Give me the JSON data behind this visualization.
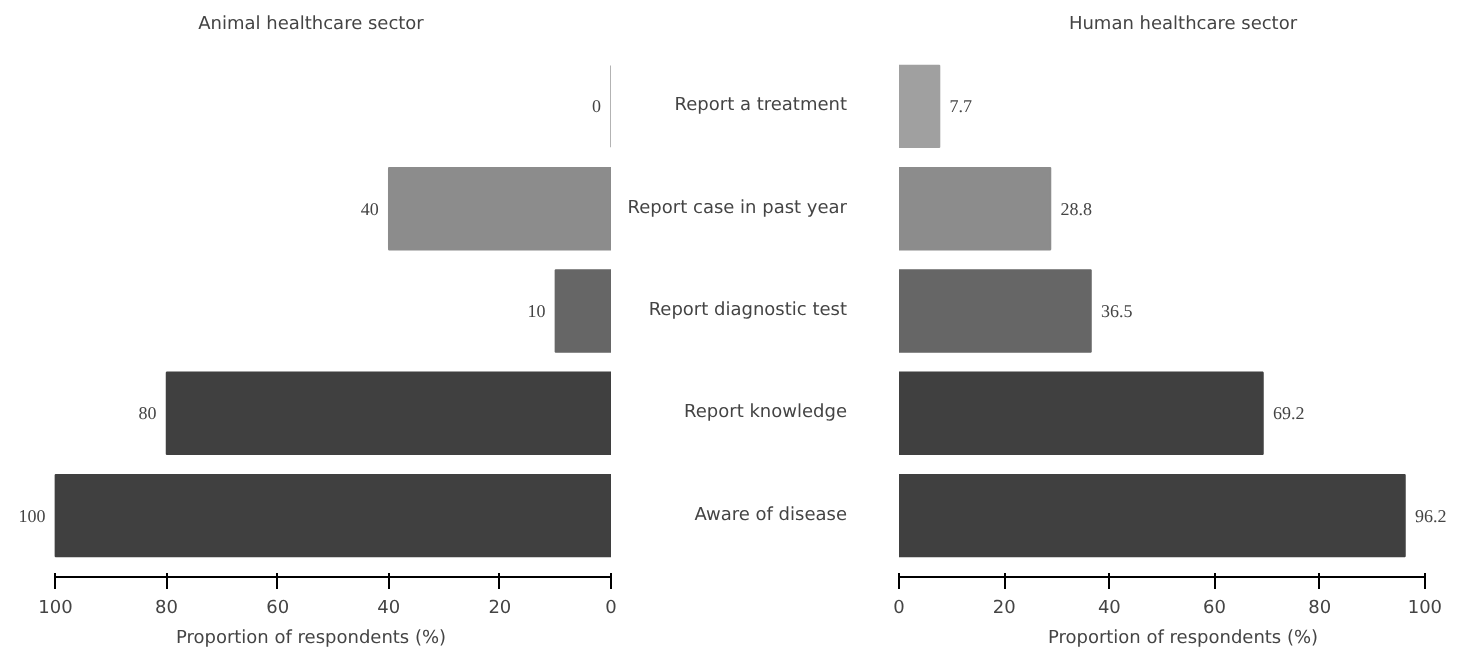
{
  "chart_data": [
    {
      "type": "bar",
      "orientation": "horizontal",
      "title": "Animal healthcare sector",
      "xlabel": "Proportion of respondents (%)",
      "categories": [
        null,
        null,
        null,
        null,
        null
      ],
      "values": [
        0,
        40,
        10,
        80,
        100
      ],
      "colors": [
        "#a0a0a0",
        "#8c8c8c",
        "#666666",
        "#404040",
        "#404040"
      ],
      "xlim": [
        100,
        0
      ],
      "xticks": [
        100,
        80,
        60,
        40,
        20,
        0
      ],
      "tick_labels": "x",
      "data_labels": true,
      "grid": false
    },
    {
      "type": "bar",
      "orientation": "horizontal",
      "title": "Human healthcare sector",
      "xlabel": "Proportion of respondents (%)",
      "categories": [
        "Report a treatment",
        "Report case in past year",
        "Report diagnostic test",
        "Report knowledge",
        "Aware of disease"
      ],
      "values": [
        7.7,
        28.8,
        36.5,
        69.2,
        96.2
      ],
      "colors": [
        "#a0a0a0",
        "#8c8c8c",
        "#666666",
        "#404040",
        "#404040"
      ],
      "xlim": [
        0,
        100
      ],
      "xticks": [
        0,
        20,
        40,
        60,
        80,
        100
      ],
      "data_labels": true,
      "grid": false
    }
  ]
}
